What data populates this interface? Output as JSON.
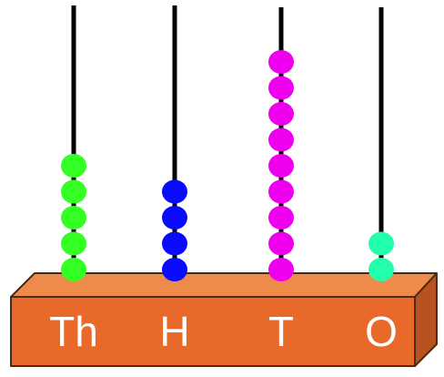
{
  "abacus": {
    "rods": [
      {
        "label": "Th",
        "beads": 5,
        "color": "#33ff22"
      },
      {
        "label": "H",
        "beads": 4,
        "color": "#0a0aff"
      },
      {
        "label": "T",
        "beads": 9,
        "color": "#ee00ee"
      },
      {
        "label": "O",
        "beads": 2,
        "color": "#22ffaa"
      }
    ],
    "base_front_color": "#e8692a",
    "base_top_color": "#ee8a4a",
    "base_side_color": "#b85220",
    "base_outline_color": "#4a2a10",
    "rod_color": "#000000"
  }
}
